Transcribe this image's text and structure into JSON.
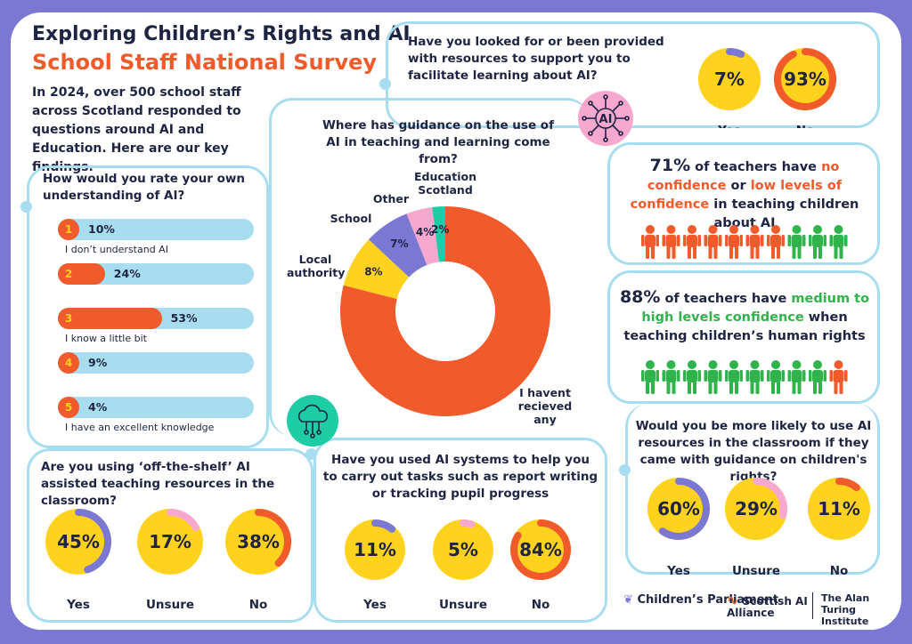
{
  "header": {
    "title": "Exploring Children’s Rights and AI",
    "subtitle": "School Staff National Survey",
    "intro": "In 2024, over 500 school staff across Scotland responded to questions around AI and Education. Here are our key findings."
  },
  "colors": {
    "yellow": "#ffd21e",
    "orange": "#f15a2b",
    "purple": "#7b78d4",
    "pink": "#f7a8cf",
    "teal": "#1ecca5",
    "blue": "#a8dcef",
    "green": "#2fb34a",
    "navy": "#1f2443"
  },
  "chart_data": [
    {
      "type": "bar",
      "question": "How would you rate your own understanding of AI?",
      "ranks": [
        "1",
        "2",
        "3",
        "4",
        "5"
      ],
      "categories": [
        "I don’t understand AI",
        "",
        "I know a little bit",
        "",
        "I have an excellent knowledge"
      ],
      "values": [
        10,
        24,
        53,
        9,
        4
      ],
      "value_labels": [
        "10%",
        "24%",
        "53%",
        "9%",
        "4%"
      ],
      "ylim": [
        0,
        100
      ]
    },
    {
      "type": "pie",
      "question": "Where has guidance on the use of AI in teaching and learning come from?",
      "categories": [
        "I havent recieved any",
        "Local authority",
        "School",
        "Other",
        "Education Scotland"
      ],
      "values": [
        79,
        8,
        7,
        4,
        2
      ],
      "value_labels": [
        "79%",
        "8%",
        "7%",
        "4%",
        "2%"
      ],
      "colors": [
        "#f15a2b",
        "#ffd21e",
        "#7b78d4",
        "#f7a8cf",
        "#1ecca5"
      ]
    },
    {
      "type": "pie",
      "question": "Have you looked for or been provided with resources to support you to facilitate learning about AI?",
      "categories": [
        "Yes",
        "No"
      ],
      "values": [
        7,
        93
      ],
      "value_labels": [
        "7%",
        "93%"
      ],
      "ring_colors": [
        "#7b78d4",
        "#f15a2b"
      ]
    },
    {
      "type": "pie",
      "question": "Are you using ‘off-the-shelf’ AI assisted teaching resources in the classroom?",
      "categories": [
        "Yes",
        "Unsure",
        "No"
      ],
      "values": [
        45,
        17,
        38
      ],
      "value_labels": [
        "45%",
        "17%",
        "38%"
      ],
      "ring_colors": [
        "#7b78d4",
        "#f7a8cf",
        "#f15a2b"
      ]
    },
    {
      "type": "pie",
      "question": "Have you used AI systems to help you to carry out tasks such as report writing or tracking pupil progress",
      "categories": [
        "Yes",
        "Unsure",
        "No"
      ],
      "values": [
        11,
        5,
        84
      ],
      "value_labels": [
        "11%",
        "5%",
        "84%"
      ],
      "ring_colors": [
        "#7b78d4",
        "#f7a8cf",
        "#f15a2b"
      ]
    },
    {
      "type": "pie",
      "question": "Would you be more likely to use AI resources in the classroom if they came with guidance on children's rights?",
      "categories": [
        "Yes",
        "Unsure",
        "No"
      ],
      "values": [
        60,
        29,
        11
      ],
      "value_labels": [
        "60%",
        "29%",
        "11%"
      ],
      "ring_colors": [
        "#7b78d4",
        "#f7a8cf",
        "#f15a2b"
      ]
    }
  ],
  "stats": {
    "confidence_ai": {
      "num": "71%",
      "pre": " of teachers have ",
      "hl1": "no confidence",
      "mid": " or ",
      "hl2": "low levels of confidence",
      "post": " in teaching children about AI",
      "orange_count": 7,
      "green_count": 3
    },
    "confidence_rights": {
      "num": "88%",
      "pre": " of teachers have ",
      "hl1": "medium to high levels confidence",
      "post": " when teaching children’s human rights",
      "green_count": 9,
      "orange_count": 1
    }
  },
  "icons": {
    "ai": "AI",
    "cloud": "cloud-network-icon"
  },
  "logos": {
    "childrens_parliament": "Children’s Parliament",
    "scottish_ai": "Scottish AI Alliance",
    "turing": "The Alan Turing Institute"
  }
}
